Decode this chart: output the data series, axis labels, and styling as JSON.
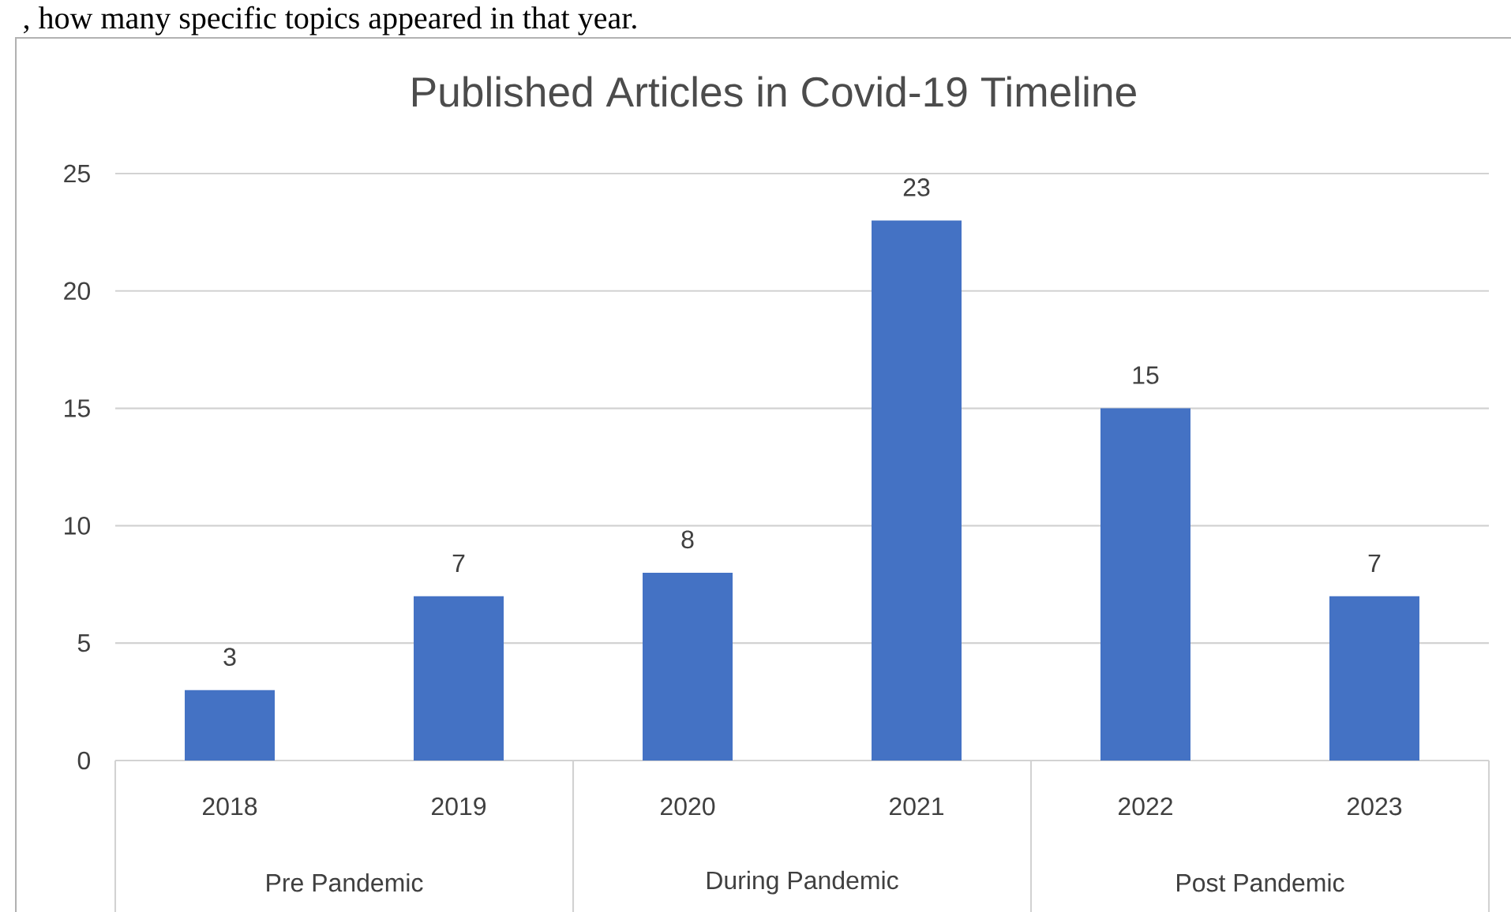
{
  "chart_data": {
    "type": "bar",
    "title": "Published Articles in Covid-19 Timeline",
    "categories": [
      "2018",
      "2019",
      "2020",
      "2021",
      "2022",
      "2023"
    ],
    "values": [
      3,
      7,
      8,
      23,
      15,
      7
    ],
    "value_labels": [
      "3",
      "7",
      "8",
      "23",
      "15",
      "7"
    ],
    "color": "#4472c4",
    "ylim": [
      0,
      25
    ],
    "yticks": [
      0,
      5,
      10,
      15,
      20,
      25
    ],
    "grid": "y",
    "annotations": [
      ", how many specific topics appeared in that year.",
      "Pre Pandemic",
      "During Pandemic",
      "Post Pandemic"
    ]
  }
}
